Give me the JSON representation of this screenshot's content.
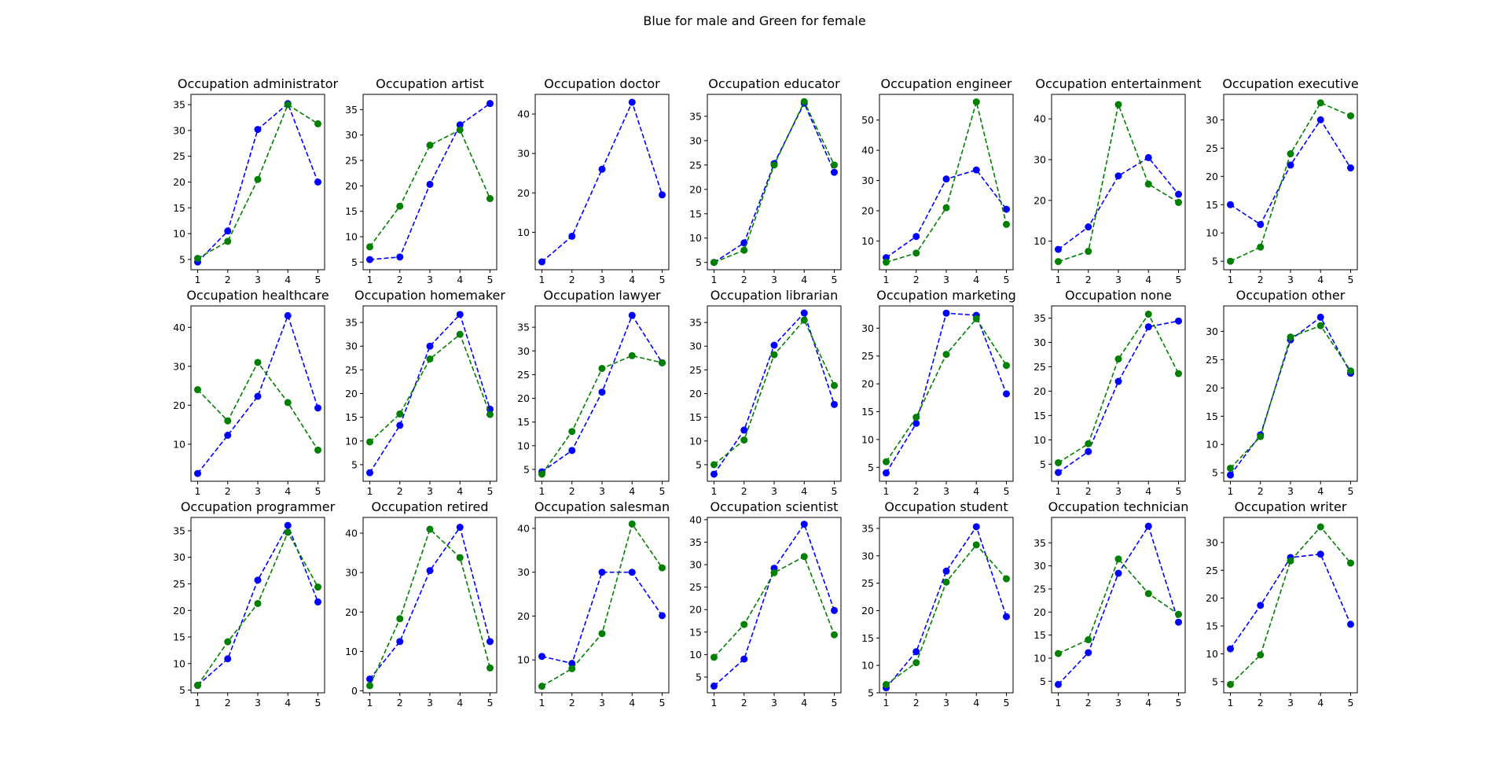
{
  "figure": {
    "suptitle": "Blue for male and Green for female",
    "colors": {
      "male": "#0000ff",
      "female": "#008000"
    }
  },
  "chart_data": [
    {
      "type": "line",
      "title": "Occupation administrator",
      "x": [
        1,
        2,
        3,
        4,
        5
      ],
      "ylim": [
        3,
        37
      ],
      "yticks": [
        5,
        10,
        15,
        20,
        25,
        30,
        35
      ],
      "series": [
        {
          "values": [
            4.5,
            10.5,
            30.2,
            35.2,
            20.0
          ]
        },
        {
          "values": [
            5.2,
            8.5,
            20.5,
            35.0,
            31.3
          ]
        }
      ]
    },
    {
      "type": "line",
      "title": "Occupation artist",
      "x": [
        1,
        2,
        3,
        4,
        5
      ],
      "ylim": [
        3.5,
        38
      ],
      "yticks": [
        5,
        10,
        15,
        20,
        25,
        30,
        35
      ],
      "series": [
        {
          "values": [
            5.5,
            6.0,
            20.3,
            32.0,
            36.2
          ]
        },
        {
          "values": [
            8.0,
            16.0,
            28.0,
            31.0,
            17.5
          ]
        }
      ]
    },
    {
      "type": "line",
      "title": "Occupation doctor",
      "x": [
        1,
        2,
        3,
        4,
        5
      ],
      "ylim": [
        0.5,
        45
      ],
      "yticks": [
        10,
        20,
        30,
        40
      ],
      "series": [
        {
          "values": [
            2.5,
            9.0,
            26.0,
            43.0,
            19.5
          ]
        }
      ]
    },
    {
      "type": "line",
      "title": "Occupation educator",
      "x": [
        1,
        2,
        3,
        4,
        5
      ],
      "ylim": [
        3.5,
        39.5
      ],
      "yticks": [
        5,
        10,
        15,
        20,
        25,
        30,
        35
      ],
      "series": [
        {
          "values": [
            5.0,
            9.0,
            25.3,
            37.7,
            23.5
          ]
        },
        {
          "values": [
            5.0,
            7.5,
            25.0,
            38.0,
            25.0
          ]
        }
      ]
    },
    {
      "type": "line",
      "title": "Occupation engineer",
      "x": [
        1,
        2,
        3,
        4,
        5
      ],
      "ylim": [
        0.5,
        58.5
      ],
      "yticks": [
        10,
        20,
        30,
        40,
        50
      ],
      "series": [
        {
          "values": [
            4.5,
            11.5,
            30.5,
            33.5,
            20.5
          ]
        },
        {
          "values": [
            3.0,
            6.0,
            21.0,
            56.0,
            15.5
          ]
        }
      ]
    },
    {
      "type": "line",
      "title": "Occupation entertainment",
      "x": [
        1,
        2,
        3,
        4,
        5
      ],
      "ylim": [
        3,
        46
      ],
      "yticks": [
        10,
        20,
        30,
        40
      ],
      "series": [
        {
          "values": [
            8.0,
            13.5,
            26.0,
            30.5,
            21.5
          ]
        },
        {
          "values": [
            5.0,
            7.5,
            43.5,
            24.0,
            19.5
          ]
        }
      ]
    },
    {
      "type": "line",
      "title": "Occupation executive",
      "x": [
        1,
        2,
        3,
        4,
        5
      ],
      "ylim": [
        3.5,
        34.5
      ],
      "yticks": [
        5,
        10,
        15,
        20,
        25,
        30
      ],
      "series": [
        {
          "values": [
            15.0,
            11.5,
            22.0,
            30.0,
            21.5
          ]
        },
        {
          "values": [
            5.0,
            7.5,
            24.0,
            33.0,
            30.7
          ]
        }
      ]
    },
    {
      "type": "line",
      "title": "Occupation healthcare",
      "x": [
        1,
        2,
        3,
        4,
        5
      ],
      "ylim": [
        0.5,
        45.5
      ],
      "yticks": [
        10,
        20,
        30,
        40
      ],
      "series": [
        {
          "values": [
            2.5,
            12.3,
            22.3,
            43.0,
            19.3
          ]
        },
        {
          "values": [
            24.0,
            16.0,
            31.0,
            20.7,
            8.5
          ]
        }
      ]
    },
    {
      "type": "line",
      "title": "Occupation homemaker",
      "x": [
        1,
        2,
        3,
        4,
        5
      ],
      "ylim": [
        1.5,
        38.5
      ],
      "yticks": [
        5,
        10,
        15,
        20,
        25,
        30,
        35
      ],
      "series": [
        {
          "values": [
            3.3,
            13.3,
            30.0,
            36.7,
            16.7
          ]
        },
        {
          "values": [
            9.8,
            15.7,
            27.3,
            32.5,
            15.6
          ]
        }
      ]
    },
    {
      "type": "line",
      "title": "Occupation lawyer",
      "x": [
        1,
        2,
        3,
        4,
        5
      ],
      "ylim": [
        2.5,
        39.5
      ],
      "yticks": [
        5,
        10,
        15,
        20,
        25,
        30,
        35
      ],
      "series": [
        {
          "values": [
            4.5,
            9.0,
            21.3,
            37.5,
            27.5
          ]
        },
        {
          "values": [
            4.0,
            13.0,
            26.3,
            29.0,
            27.5
          ]
        }
      ]
    },
    {
      "type": "line",
      "title": "Occupation librarian",
      "x": [
        1,
        2,
        3,
        4,
        5
      ],
      "ylim": [
        1.5,
        38.5
      ],
      "yticks": [
        5,
        10,
        15,
        20,
        25,
        30,
        35
      ],
      "series": [
        {
          "values": [
            3.0,
            12.3,
            30.2,
            37.0,
            17.7
          ]
        },
        {
          "values": [
            5.0,
            10.2,
            28.2,
            35.5,
            21.7
          ]
        }
      ]
    },
    {
      "type": "line",
      "title": "Occupation marketing",
      "x": [
        1,
        2,
        3,
        4,
        5
      ],
      "ylim": [
        2.5,
        34
      ],
      "yticks": [
        5,
        10,
        15,
        20,
        25,
        30
      ],
      "series": [
        {
          "values": [
            4.0,
            12.9,
            32.7,
            32.3,
            18.2
          ]
        },
        {
          "values": [
            6.0,
            14.0,
            25.3,
            31.7,
            23.3
          ]
        }
      ]
    },
    {
      "type": "line",
      "title": "Occupation none",
      "x": [
        1,
        2,
        3,
        4,
        5
      ],
      "ylim": [
        1.5,
        37.5
      ],
      "yticks": [
        5,
        10,
        15,
        20,
        25,
        30,
        35
      ],
      "series": [
        {
          "values": [
            3.3,
            7.6,
            22.0,
            33.2,
            34.4
          ]
        },
        {
          "values": [
            5.3,
            9.2,
            26.6,
            35.8,
            23.6
          ]
        }
      ]
    },
    {
      "type": "line",
      "title": "Occupation other",
      "x": [
        1,
        2,
        3,
        4,
        5
      ],
      "ylim": [
        3.5,
        34.5
      ],
      "yticks": [
        5,
        10,
        15,
        20,
        25,
        30
      ],
      "series": [
        {
          "values": [
            4.6,
            11.7,
            28.5,
            32.5,
            22.6
          ]
        },
        {
          "values": [
            5.8,
            11.4,
            29.0,
            31.0,
            23.0
          ]
        }
      ]
    },
    {
      "type": "line",
      "title": "Occupation programmer",
      "x": [
        1,
        2,
        3,
        4,
        5
      ],
      "ylim": [
        4.5,
        37.5
      ],
      "yticks": [
        5,
        10,
        15,
        20,
        25,
        30,
        35
      ],
      "series": [
        {
          "values": [
            5.9,
            10.9,
            25.7,
            36.0,
            21.6
          ]
        },
        {
          "values": [
            5.9,
            14.1,
            21.3,
            34.7,
            24.4
          ]
        }
      ]
    },
    {
      "type": "line",
      "title": "Occupation retired",
      "x": [
        1,
        2,
        3,
        4,
        5
      ],
      "ylim": [
        -0.5,
        44
      ],
      "yticks": [
        0,
        10,
        20,
        30,
        40
      ],
      "series": [
        {
          "values": [
            3.0,
            12.5,
            30.5,
            41.5,
            12.5
          ]
        },
        {
          "values": [
            1.3,
            18.3,
            41.0,
            33.8,
            5.8
          ]
        }
      ]
    },
    {
      "type": "line",
      "title": "Occupation salesman",
      "x": [
        1,
        2,
        3,
        4,
        5
      ],
      "ylim": [
        2.5,
        42.5
      ],
      "yticks": [
        10,
        20,
        30,
        40
      ],
      "series": [
        {
          "values": [
            10.8,
            9.2,
            30.0,
            30.0,
            20.1
          ]
        },
        {
          "values": [
            4.0,
            8.0,
            16.0,
            41.0,
            31.0
          ]
        }
      ]
    },
    {
      "type": "line",
      "title": "Occupation scientist",
      "x": [
        1,
        2,
        3,
        4,
        5
      ],
      "ylim": [
        1.5,
        40.5
      ],
      "yticks": [
        5,
        10,
        15,
        20,
        25,
        30,
        35,
        40
      ],
      "series": [
        {
          "values": [
            3.0,
            9.0,
            29.2,
            39.0,
            19.8
          ]
        },
        {
          "values": [
            9.4,
            16.7,
            28.2,
            31.8,
            14.4
          ]
        }
      ]
    },
    {
      "type": "line",
      "title": "Occupation student",
      "x": [
        1,
        2,
        3,
        4,
        5
      ],
      "ylim": [
        5,
        37
      ],
      "yticks": [
        5,
        10,
        15,
        20,
        25,
        30,
        35
      ],
      "series": [
        {
          "values": [
            5.9,
            12.5,
            27.2,
            35.3,
            18.9
          ]
        },
        {
          "values": [
            6.5,
            10.5,
            25.2,
            32.0,
            25.8
          ]
        }
      ]
    },
    {
      "type": "line",
      "title": "Occupation technician",
      "x": [
        1,
        2,
        3,
        4,
        5
      ],
      "ylim": [
        2.5,
        40.5
      ],
      "yticks": [
        5,
        10,
        15,
        20,
        25,
        30,
        35
      ],
      "series": [
        {
          "values": [
            4.3,
            11.2,
            28.4,
            38.6,
            17.8
          ]
        },
        {
          "values": [
            11.0,
            14.0,
            31.5,
            24.0,
            19.5
          ]
        }
      ]
    },
    {
      "type": "line",
      "title": "Occupation writer",
      "x": [
        1,
        2,
        3,
        4,
        5
      ],
      "ylim": [
        3,
        34.5
      ],
      "yticks": [
        5,
        10,
        15,
        20,
        25,
        30
      ],
      "series": [
        {
          "values": [
            10.9,
            18.7,
            27.3,
            27.9,
            15.3
          ]
        },
        {
          "values": [
            4.5,
            9.8,
            26.7,
            32.8,
            26.3
          ]
        }
      ]
    }
  ]
}
